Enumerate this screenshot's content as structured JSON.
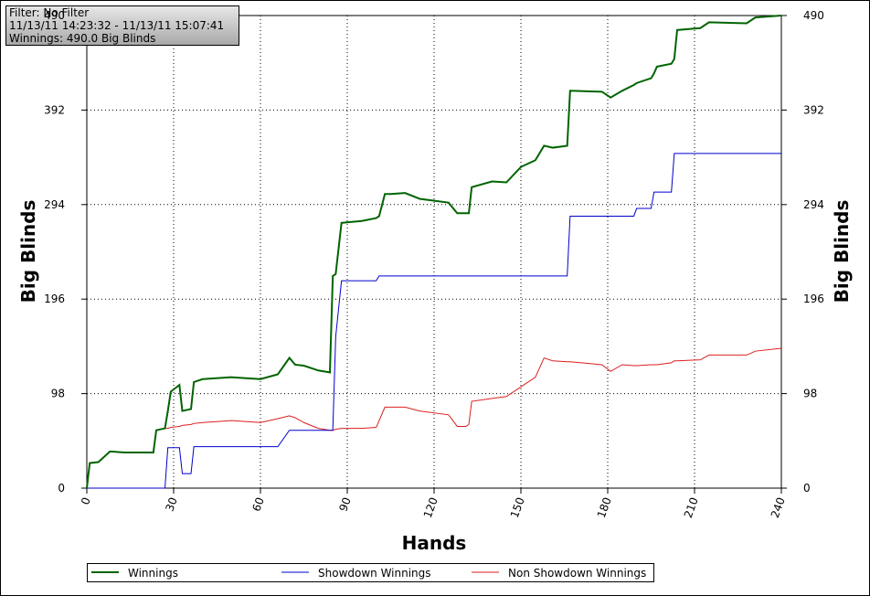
{
  "info": {
    "filter": "Filter: No Filter",
    "range": "11/13/11 14:23:32 - 11/13/11 15:07:41",
    "winnings": "Winnings: 490.0 Big Blinds"
  },
  "chart_data": {
    "type": "line",
    "x_label": "Hands",
    "y_label": "Big Blinds",
    "y2_label": "Big Blinds",
    "xlim": [
      0,
      240
    ],
    "xticks": [
      0,
      30,
      60,
      90,
      120,
      150,
      180,
      210,
      240
    ],
    "ylim": [
      0,
      490
    ],
    "yticks": [
      0,
      98,
      196,
      294,
      392,
      490
    ],
    "grid": true,
    "legend": "bottom",
    "x": [
      0,
      1,
      4,
      8,
      13,
      23,
      24,
      27,
      28,
      29,
      32,
      33,
      36,
      37,
      40,
      50,
      60,
      66,
      70,
      72,
      75,
      80,
      84,
      85,
      86,
      88,
      95,
      100,
      101,
      103,
      105,
      110,
      115,
      125,
      128,
      131,
      132,
      133,
      140,
      145,
      150,
      155,
      158,
      161,
      166,
      167,
      178,
      181,
      185,
      189,
      190,
      195,
      196,
      197,
      202,
      203,
      204,
      212,
      215,
      228,
      231,
      240
    ],
    "series": [
      {
        "name": "Winnings",
        "color": "#006400",
        "values": [
          0,
          26,
          27,
          38,
          37,
          37,
          60,
          62,
          80,
          100,
          107,
          80,
          82,
          110,
          113,
          115,
          113,
          118,
          135,
          128,
          127,
          122,
          120,
          220,
          222,
          275,
          277,
          280,
          282,
          305,
          305,
          306,
          300,
          296,
          285,
          285,
          285,
          312,
          318,
          317,
          333,
          340,
          355,
          353,
          355,
          412,
          411,
          405,
          412,
          418,
          420,
          425,
          430,
          437,
          440,
          445,
          475,
          477,
          483,
          482,
          488,
          490
        ]
      },
      {
        "name": "Showdown Winnings",
        "color": "#0000cd",
        "values": [
          0,
          0,
          0,
          0,
          0,
          0,
          0,
          0,
          42,
          42,
          42,
          15,
          15,
          43,
          43,
          43,
          43,
          43,
          60,
          60,
          60,
          60,
          60,
          60,
          157,
          215,
          215,
          215,
          220,
          220,
          220,
          220,
          220,
          220,
          220,
          220,
          220,
          220,
          220,
          220,
          220,
          220,
          220,
          220,
          220,
          282,
          282,
          282,
          282,
          282,
          290,
          290,
          307,
          307,
          307,
          347,
          347,
          347,
          347,
          347,
          347,
          347
        ]
      },
      {
        "name": "Non Showdown Winnings",
        "color": "#dc1e1e",
        "values": [
          0,
          26,
          27,
          38,
          37,
          37,
          60,
          62,
          62,
          63,
          64,
          65,
          66,
          67,
          68,
          70,
          68,
          72,
          75,
          73,
          68,
          62,
          60,
          60,
          61,
          62,
          62,
          63,
          70,
          84,
          84,
          84,
          80,
          76,
          64,
          64,
          66,
          90,
          93,
          95,
          105,
          115,
          135,
          132,
          131,
          131,
          128,
          121,
          128,
          127,
          127,
          128,
          128,
          128,
          130,
          132,
          132,
          133,
          138,
          138,
          142,
          145
        ]
      }
    ]
  }
}
